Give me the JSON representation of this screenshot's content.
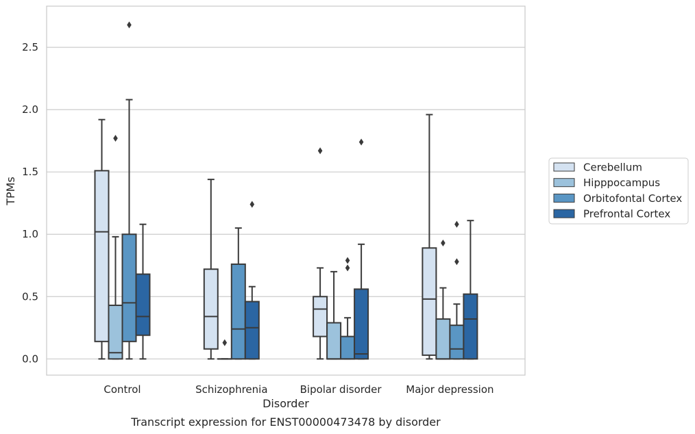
{
  "chart_data": {
    "type": "boxplot",
    "caption": "Transcript expression for ENST00000473478 by disorder",
    "xlabel": "Disorder",
    "ylabel": "TPMs",
    "ylim": [
      -0.13,
      2.83
    ],
    "yticks": [
      "0.0",
      "0.5",
      "1.0",
      "1.5",
      "2.0",
      "2.5"
    ],
    "grid": "horizontal",
    "legend_position": "outside-right",
    "categories": [
      "Control",
      "Schizophrenia",
      "Bipolar disorder",
      "Major depression"
    ],
    "series": [
      {
        "name": "Cerebellum",
        "color": "#d4e2f1",
        "boxes": [
          {
            "whislo": 0.0,
            "q1": 0.14,
            "med": 1.02,
            "q3": 1.51,
            "whishi": 1.92,
            "fliers": []
          },
          {
            "whislo": 0.0,
            "q1": 0.08,
            "med": 0.34,
            "q3": 0.72,
            "whishi": 1.44,
            "fliers": []
          },
          {
            "whislo": 0.0,
            "q1": 0.18,
            "med": 0.4,
            "q3": 0.5,
            "whishi": 0.73,
            "fliers": [
              1.67
            ]
          },
          {
            "whislo": 0.0,
            "q1": 0.03,
            "med": 0.48,
            "q3": 0.89,
            "whishi": 1.96,
            "fliers": []
          }
        ]
      },
      {
        "name": "Hipppocampus",
        "color": "#9cc2dc",
        "boxes": [
          {
            "whislo": 0.0,
            "q1": 0.0,
            "med": 0.05,
            "q3": 0.43,
            "whishi": 0.98,
            "fliers": [
              1.77
            ]
          },
          {
            "whislo": 0.0,
            "q1": 0.0,
            "med": 0.0,
            "q3": 0.0,
            "whishi": 0.0,
            "fliers": [
              0.13
            ]
          },
          {
            "whislo": 0.0,
            "q1": 0.0,
            "med": 0.0,
            "q3": 0.29,
            "whishi": 0.7,
            "fliers": []
          },
          {
            "whislo": 0.0,
            "q1": 0.0,
            "med": 0.0,
            "q3": 0.32,
            "whishi": 0.57,
            "fliers": [
              0.93
            ]
          }
        ]
      },
      {
        "name": "Orbitofontal Cortex",
        "color": "#5a96c4",
        "boxes": [
          {
            "whislo": 0.0,
            "q1": 0.14,
            "med": 0.45,
            "q3": 1.0,
            "whishi": 2.08,
            "fliers": [
              2.68
            ]
          },
          {
            "whislo": 0.0,
            "q1": 0.0,
            "med": 0.24,
            "q3": 0.76,
            "whishi": 1.05,
            "fliers": []
          },
          {
            "whislo": 0.0,
            "q1": 0.0,
            "med": 0.0,
            "q3": 0.18,
            "whishi": 0.33,
            "fliers": [
              0.73,
              0.79
            ]
          },
          {
            "whislo": 0.0,
            "q1": 0.0,
            "med": 0.08,
            "q3": 0.27,
            "whishi": 0.44,
            "fliers": [
              0.78,
              1.08
            ]
          }
        ]
      },
      {
        "name": "Prefrontal Cortex",
        "color": "#2b66a3",
        "boxes": [
          {
            "whislo": 0.0,
            "q1": 0.19,
            "med": 0.34,
            "q3": 0.68,
            "whishi": 1.08,
            "fliers": []
          },
          {
            "whislo": 0.0,
            "q1": 0.0,
            "med": 0.25,
            "q3": 0.46,
            "whishi": 0.58,
            "fliers": [
              1.24
            ]
          },
          {
            "whislo": 0.0,
            "q1": 0.0,
            "med": 0.04,
            "q3": 0.56,
            "whishi": 0.92,
            "fliers": [
              1.74
            ]
          },
          {
            "whislo": 0.0,
            "q1": 0.0,
            "med": 0.32,
            "q3": 0.52,
            "whishi": 1.11,
            "fliers": []
          }
        ]
      }
    ]
  }
}
